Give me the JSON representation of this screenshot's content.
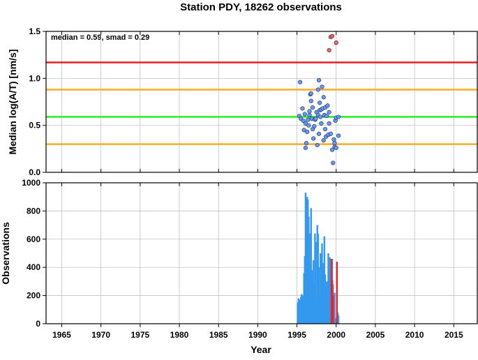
{
  "chart_data": [
    {
      "type": "scatter",
      "title": "Station PDY, 18262 observations",
      "annotation": "median = 0.59, smad = 0.29",
      "xlabel": "",
      "ylabel": "Median log(A/T) [nm/s]",
      "xlim": [
        1963,
        2018
      ],
      "ylim": [
        0,
        1.5
      ],
      "xticks": [
        1965,
        1970,
        1975,
        1980,
        1985,
        1990,
        1995,
        2000,
        2005,
        2010,
        2015
      ],
      "yticks": [
        "0.0",
        "0.5",
        "1.0",
        "1.5"
      ],
      "grid": true,
      "reference_lines": [
        {
          "y": 1.17,
          "color": "#e02020"
        },
        {
          "y": 0.88,
          "color": "#ffaa22"
        },
        {
          "y": 0.59,
          "color": "#22ee22"
        },
        {
          "y": 0.3,
          "color": "#ffaa22"
        }
      ],
      "series": [
        {
          "color": "#6699ee",
          "points": [
            [
              1995.4,
              0.96
            ],
            [
              1995.3,
              0.6
            ],
            [
              1995.5,
              0.57
            ],
            [
              1995.7,
              0.68
            ],
            [
              1995.8,
              0.55
            ],
            [
              1995.9,
              0.45
            ],
            [
              1996.0,
              0.62
            ],
            [
              1996.1,
              0.52
            ],
            [
              1996.1,
              0.26
            ],
            [
              1996.2,
              0.31
            ],
            [
              1996.3,
              0.43
            ],
            [
              1996.4,
              0.56
            ],
            [
              1996.5,
              0.5
            ],
            [
              1996.6,
              0.61
            ],
            [
              1996.6,
              0.65
            ],
            [
              1996.7,
              0.83
            ],
            [
              1996.8,
              0.76
            ],
            [
              1996.8,
              0.84
            ],
            [
              1996.9,
              0.57
            ],
            [
              1997.0,
              0.46
            ],
            [
              1997.0,
              0.69
            ],
            [
              1997.1,
              0.36
            ],
            [
              1997.2,
              0.49
            ],
            [
              1997.3,
              0.56
            ],
            [
              1997.4,
              0.57
            ],
            [
              1997.5,
              0.64
            ],
            [
              1997.6,
              0.29
            ],
            [
              1997.7,
              0.61
            ],
            [
              1997.7,
              0.88
            ],
            [
              1997.8,
              0.98
            ],
            [
              1997.8,
              0.41
            ],
            [
              1997.9,
              0.66
            ],
            [
              1997.9,
              0.74
            ],
            [
              1998.0,
              0.59
            ],
            [
              1998.1,
              0.67
            ],
            [
              1998.1,
              0.52
            ],
            [
              1998.2,
              0.91
            ],
            [
              1998.3,
              0.68
            ],
            [
              1998.4,
              0.8
            ],
            [
              1998.4,
              0.34
            ],
            [
              1998.5,
              0.61
            ],
            [
              1998.6,
              0.69
            ],
            [
              1998.6,
              0.46
            ],
            [
              1998.7,
              0.38
            ],
            [
              1998.8,
              0.6
            ],
            [
              1998.9,
              0.71
            ],
            [
              1999.0,
              0.4
            ],
            [
              1999.1,
              0.52
            ],
            [
              1999.1,
              0.64
            ],
            [
              1999.3,
              0.41
            ],
            [
              1999.5,
              0.24
            ],
            [
              1999.6,
              0.1
            ],
            [
              1999.7,
              0.35
            ],
            [
              1999.8,
              0.31
            ],
            [
              1999.8,
              0.27
            ],
            [
              1999.9,
              0.55
            ],
            [
              2000.0,
              0.58
            ],
            [
              2000.0,
              0.26
            ],
            [
              2000.3,
              0.39
            ],
            [
              2000.3,
              0.59
            ]
          ]
        },
        {
          "color": "#ee6655",
          "points": [
            [
              1999.3,
              1.44
            ],
            [
              1999.5,
              1.45
            ],
            [
              1999.1,
              1.3
            ],
            [
              2000.0,
              1.38
            ]
          ]
        }
      ]
    },
    {
      "type": "bar",
      "xlabel": "Year",
      "ylabel": "Observations",
      "xlim": [
        1963,
        2018
      ],
      "ylim": [
        0,
        1000
      ],
      "xticks": [
        1965,
        1970,
        1975,
        1980,
        1985,
        1990,
        1995,
        2000,
        2005,
        2010,
        2015
      ],
      "yticks": [
        0,
        200,
        400,
        600,
        800,
        1000
      ],
      "grid": true,
      "series": [
        {
          "color": "#3399ee",
          "x": [
            1995.1,
            1995.2,
            1995.3,
            1995.4,
            1995.5,
            1995.6,
            1995.7,
            1995.8,
            1995.9,
            1996.0,
            1996.1,
            1996.2,
            1996.3,
            1996.4,
            1996.5,
            1996.6,
            1996.7,
            1996.8,
            1996.9,
            1997.0,
            1997.1,
            1997.2,
            1997.3,
            1997.4,
            1997.5,
            1997.6,
            1997.7,
            1997.8,
            1997.9,
            1998.0,
            1998.1,
            1998.2,
            1998.3,
            1998.4,
            1998.5,
            1998.6,
            1998.7,
            1998.8,
            1998.9,
            1999.0,
            1999.1,
            1999.2,
            1999.3,
            1999.5,
            1999.6,
            1999.7,
            1999.8,
            1999.9,
            2000.1,
            2000.2,
            2000.3
          ],
          "values": [
            150,
            180,
            170,
            160,
            190,
            210,
            140,
            200,
            360,
            480,
            930,
            600,
            900,
            880,
            760,
            640,
            420,
            820,
            300,
            380,
            450,
            280,
            640,
            580,
            200,
            700,
            640,
            400,
            190,
            500,
            440,
            570,
            430,
            380,
            620,
            350,
            260,
            300,
            240,
            500,
            420,
            470,
            320,
            460,
            280,
            160,
            220,
            40,
            30,
            80,
            60
          ]
        },
        {
          "color": "#ee2222",
          "x": [
            1999.4,
            1999.5,
            1999.6,
            2000.1
          ],
          "values": [
            460,
            310,
            200,
            440
          ]
        }
      ]
    }
  ]
}
